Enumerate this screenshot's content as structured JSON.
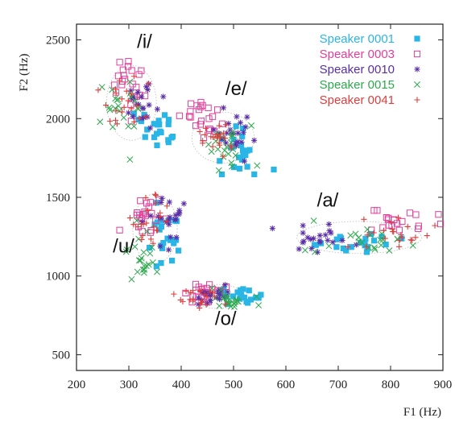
{
  "chart_data": {
    "type": "scatter",
    "title": "",
    "xlabel": "F1 (Hz)",
    "ylabel": "F2 (Hz)",
    "xlim": [
      200,
      900
    ],
    "ylim": [
      400,
      2600
    ],
    "xticks": [
      "200",
      "300",
      "400",
      "500",
      "600",
      "700",
      "800",
      "900"
    ],
    "yticks": [
      "500",
      "1000",
      "1500",
      "2000",
      "2500"
    ],
    "xtick_values": [
      200,
      300,
      400,
      500,
      600,
      700,
      800,
      900
    ],
    "ytick_values": [
      500,
      1000,
      1500,
      2000,
      2500
    ],
    "grid": false,
    "legend_position": "top-right",
    "series": [
      {
        "name": "Speaker 0001",
        "color": "#29b6e6",
        "marker": "filled-square"
      },
      {
        "name": "Speaker 0003",
        "color": "#e0409a",
        "marker": "open-square"
      },
      {
        "name": "Speaker 0010",
        "color": "#5a2ea6",
        "marker": "asterisk"
      },
      {
        "name": "Speaker 0015",
        "color": "#2ea84e",
        "marker": "x"
      },
      {
        "name": "Speaker 0041",
        "color": "#e03c3c",
        "marker": "plus"
      }
    ],
    "vowels": [
      {
        "label": "/i/",
        "label_at": [
          330,
          2450
        ],
        "center": [
          305,
          2100
        ],
        "spread": [
          28,
          140
        ],
        "speaker_offsets": [
          [
            40,
            -220
          ],
          [
            -10,
            150
          ],
          [
            20,
            0
          ],
          [
            -20,
            -30
          ],
          [
            -15,
            0
          ]
        ]
      },
      {
        "label": "/e/",
        "label_at": [
          505,
          2150
        ],
        "center": [
          480,
          1880
        ],
        "spread": [
          35,
          95
        ],
        "speaker_offsets": [
          [
            30,
            -120
          ],
          [
            -45,
            130
          ],
          [
            25,
            30
          ],
          [
            10,
            -40
          ],
          [
            -10,
            -10
          ]
        ]
      },
      {
        "label": "/u/",
        "label_at": [
          290,
          1150
        ],
        "center": [
          350,
          1300
        ],
        "spread": [
          25,
          130
        ],
        "speaker_offsets": [
          [
            25,
            -50
          ],
          [
            -20,
            110
          ],
          [
            25,
            80
          ],
          [
            -30,
            -180
          ],
          [
            -5,
            20
          ]
        ]
      },
      {
        "label": "/o/",
        "label_at": [
          485,
          690
        ],
        "center": [
          470,
          870
        ],
        "spread": [
          30,
          45
        ],
        "speaker_offsets": [
          [
            40,
            0
          ],
          [
            -20,
            20
          ],
          [
            0,
            0
          ],
          [
            20,
            -40
          ],
          [
            -25,
            -20
          ]
        ]
      },
      {
        "label": "/a/",
        "label_at": [
          680,
          1440
        ],
        "center": [
          740,
          1245
        ],
        "spread": [
          70,
          60
        ],
        "speaker_offsets": [
          [
            0,
            -30
          ],
          [
            60,
            110
          ],
          [
            -70,
            -10
          ],
          [
            20,
            -20
          ],
          [
            60,
            20
          ]
        ]
      }
    ]
  }
}
